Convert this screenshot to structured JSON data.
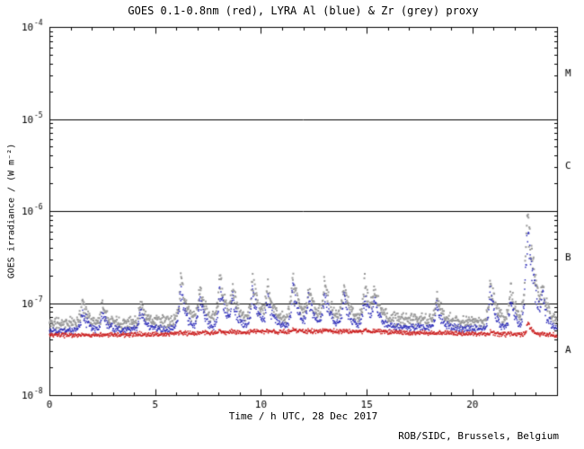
{
  "chart_data": {
    "type": "scatter",
    "title": "GOES 0.1-0.8nm (red), LYRA Al (blue) & Zr (grey) proxy",
    "xlabel": "Time / h UTC, 28 Dec 2017",
    "ylabel": "GOES irradiance / (W m⁻²)",
    "credit": "ROB/SIDC, Brussels, Belgium",
    "xlim": [
      0,
      24
    ],
    "x_major_ticks": [
      0,
      5,
      10,
      15,
      20
    ],
    "x_minor_step": 1,
    "ylim_log10": [
      -8,
      -4
    ],
    "y_major_exponents": [
      -8,
      -7,
      -6,
      -5,
      -4
    ],
    "hlines_log10": [
      -7,
      -6,
      -5
    ],
    "flare_classes": [
      {
        "label": "A",
        "log10": -7.5
      },
      {
        "label": "B",
        "log10": -6.5
      },
      {
        "label": "C",
        "log10": -5.5
      },
      {
        "label": "M",
        "log10": -4.5
      }
    ],
    "axis_color": "#000000",
    "background_color": "#ffffff",
    "cadence_per_hour": 50,
    "series": [
      {
        "name": "Zr (grey) proxy",
        "color": "#9a9a9a",
        "base_log10": -7.19,
        "noise": 0.035,
        "wave_amp": 0.03,
        "spike_scale": 1.0,
        "seed": 11,
        "dot": 2
      },
      {
        "name": "LYRA Al (blue)",
        "color": "#3333bb",
        "base_log10": -7.27,
        "noise": 0.02,
        "wave_amp": 0.025,
        "spike_scale": 0.7,
        "seed": 22,
        "dot": 1.5
      },
      {
        "name": "GOES 0.1-0.8nm (red)",
        "color": "#cc2222",
        "base_log10": -7.33,
        "noise": 0.012,
        "wave_amp": 0.02,
        "spike_scale": 0.02,
        "seed": 33,
        "dot": 1.5
      }
    ],
    "spikes": [
      {
        "t": 1.55,
        "peak_log10": -7.3
      },
      {
        "t": 2.5,
        "peak_log10": -7.4
      },
      {
        "t": 4.3,
        "peak_log10": -7.35
      },
      {
        "t": 6.2,
        "peak_log10": -6.92
      },
      {
        "t": 7.1,
        "peak_log10": -7.05
      },
      {
        "t": 8.05,
        "peak_log10": -6.88
      },
      {
        "t": 8.65,
        "peak_log10": -7.1
      },
      {
        "t": 9.6,
        "peak_log10": -6.92
      },
      {
        "t": 10.3,
        "peak_log10": -7.05
      },
      {
        "t": 11.5,
        "peak_log10": -6.88
      },
      {
        "t": 12.25,
        "peak_log10": -7.1
      },
      {
        "t": 13.0,
        "peak_log10": -6.98
      },
      {
        "t": 13.9,
        "peak_log10": -7.05
      },
      {
        "t": 14.9,
        "peak_log10": -6.98
      },
      {
        "t": 15.35,
        "peak_log10": -7.15
      },
      {
        "t": 18.3,
        "peak_log10": -7.25
      },
      {
        "t": 20.85,
        "peak_log10": -6.95
      },
      {
        "t": 21.8,
        "peak_log10": -7.05
      },
      {
        "t": 22.6,
        "peak_log10": -6.1
      },
      {
        "t": 23.3,
        "peak_log10": -7.0
      }
    ]
  }
}
